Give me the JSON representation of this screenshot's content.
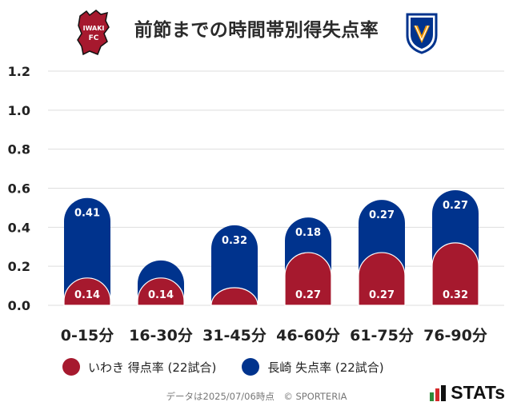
{
  "header": {
    "title": "前節までの時間帯別得失点率",
    "home_badge_text": "IWAKI FC",
    "away_badge_text": "V-VAREN NAGASAKI"
  },
  "legend": {
    "home_label": "いわき 得点率 (22試合)",
    "away_label": "長崎 失点率 (22試合)"
  },
  "footer": {
    "note": "データは2025/07/06時点　© SPORTERIA"
  },
  "brand": {
    "stats_label": "STATs"
  },
  "colors": {
    "home": "#a6192e",
    "away": "#00338d",
    "grid": "#dddddd"
  },
  "chart_data": {
    "type": "bar",
    "stacked": true,
    "title": "前節までの時間帯別得失点率",
    "categories": [
      "0-15分",
      "16-30分",
      "31-45分",
      "46-60分",
      "61-75分",
      "76-90分"
    ],
    "series": [
      {
        "name": "いわき 得点率 (22試合)",
        "values": [
          0.14,
          0.14,
          0.09,
          0.27,
          0.27,
          0.32
        ],
        "labels": [
          "0.14",
          "0.14",
          "",
          "0.27",
          "0.27",
          "0.32"
        ]
      },
      {
        "name": "長崎 失点率 (22試合)",
        "values": [
          0.41,
          0.09,
          0.32,
          0.18,
          0.27,
          0.27
        ],
        "labels": [
          "0.41",
          "",
          "0.32",
          "0.18",
          "0.27",
          "0.27"
        ]
      }
    ],
    "ylim": [
      0,
      1.2
    ],
    "yticks": [
      "0.0",
      "0.2",
      "0.4",
      "0.6",
      "0.8",
      "1.0",
      "1.2"
    ],
    "grid": true,
    "legend_position": "bottom-left"
  }
}
